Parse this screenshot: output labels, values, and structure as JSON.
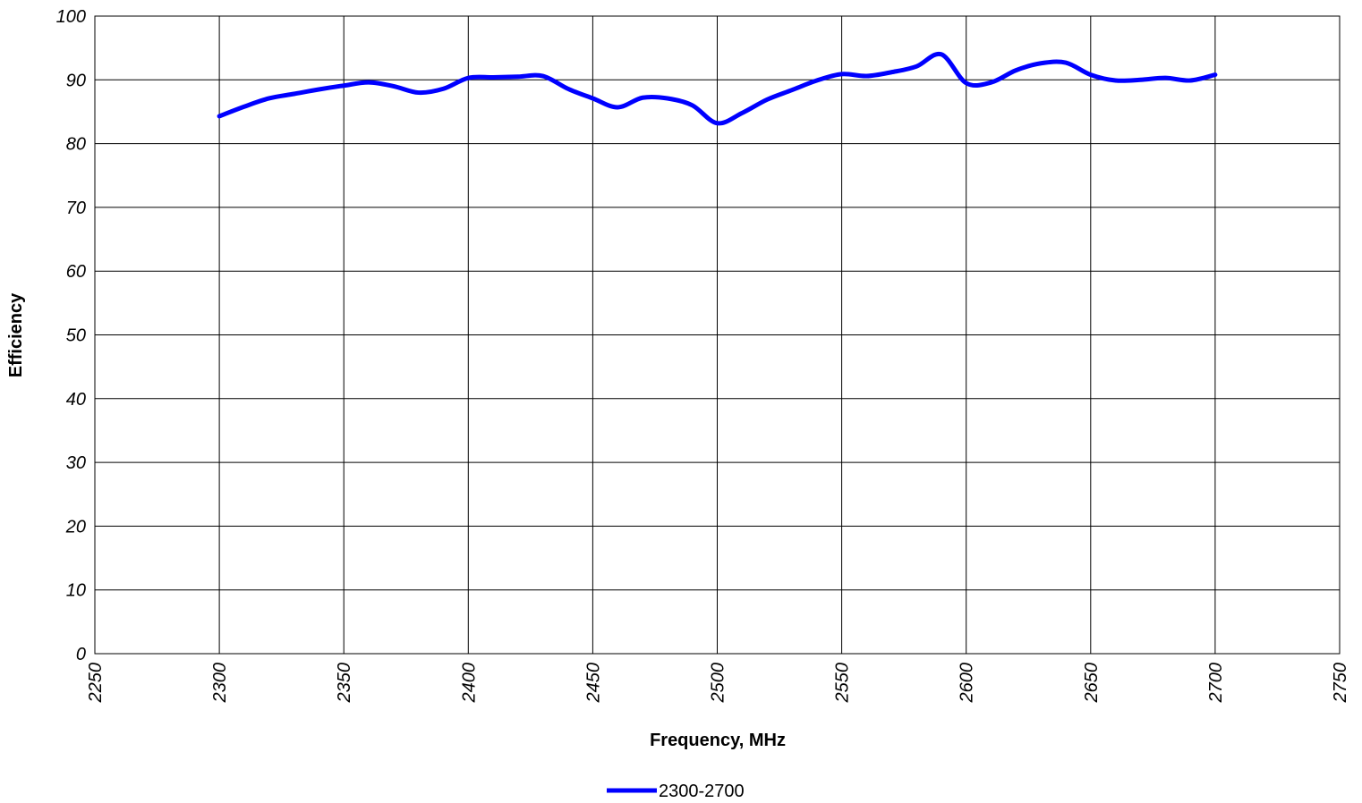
{
  "chart_data": {
    "type": "line",
    "xlabel": "Frequency, MHz",
    "ylabel": "Efficiency",
    "xlim": [
      2250,
      2750
    ],
    "ylim": [
      0,
      100
    ],
    "x_ticks": [
      "2250",
      "2300",
      "2350",
      "2400",
      "2450",
      "2500",
      "2550",
      "2600",
      "2650",
      "2700",
      "2750"
    ],
    "y_ticks": [
      "0",
      "10",
      "20",
      "30",
      "40",
      "50",
      "60",
      "70",
      "80",
      "90",
      "100"
    ],
    "grid": true,
    "legend_position": "bottom-center",
    "series": [
      {
        "name": "2300-2700",
        "color": "#0000ff",
        "x": [
          2300,
          2310,
          2320,
          2330,
          2340,
          2350,
          2360,
          2370,
          2380,
          2390,
          2400,
          2410,
          2420,
          2430,
          2440,
          2450,
          2460,
          2470,
          2480,
          2490,
          2500,
          2510,
          2520,
          2530,
          2540,
          2550,
          2560,
          2570,
          2580,
          2590,
          2600,
          2610,
          2620,
          2630,
          2640,
          2650,
          2660,
          2670,
          2680,
          2690,
          2700
        ],
        "y": [
          84.3,
          85.8,
          87.1,
          87.8,
          88.5,
          89.1,
          89.6,
          89.0,
          88.0,
          88.6,
          90.3,
          90.4,
          90.5,
          90.6,
          88.6,
          87.1,
          85.7,
          87.2,
          87.1,
          86.0,
          83.2,
          84.8,
          86.9,
          88.4,
          89.9,
          90.9,
          90.6,
          91.2,
          92.1,
          94.0,
          89.5,
          89.6,
          91.5,
          92.6,
          92.7,
          90.8,
          89.9,
          90.0,
          90.3,
          89.9,
          90.8
        ]
      }
    ]
  }
}
